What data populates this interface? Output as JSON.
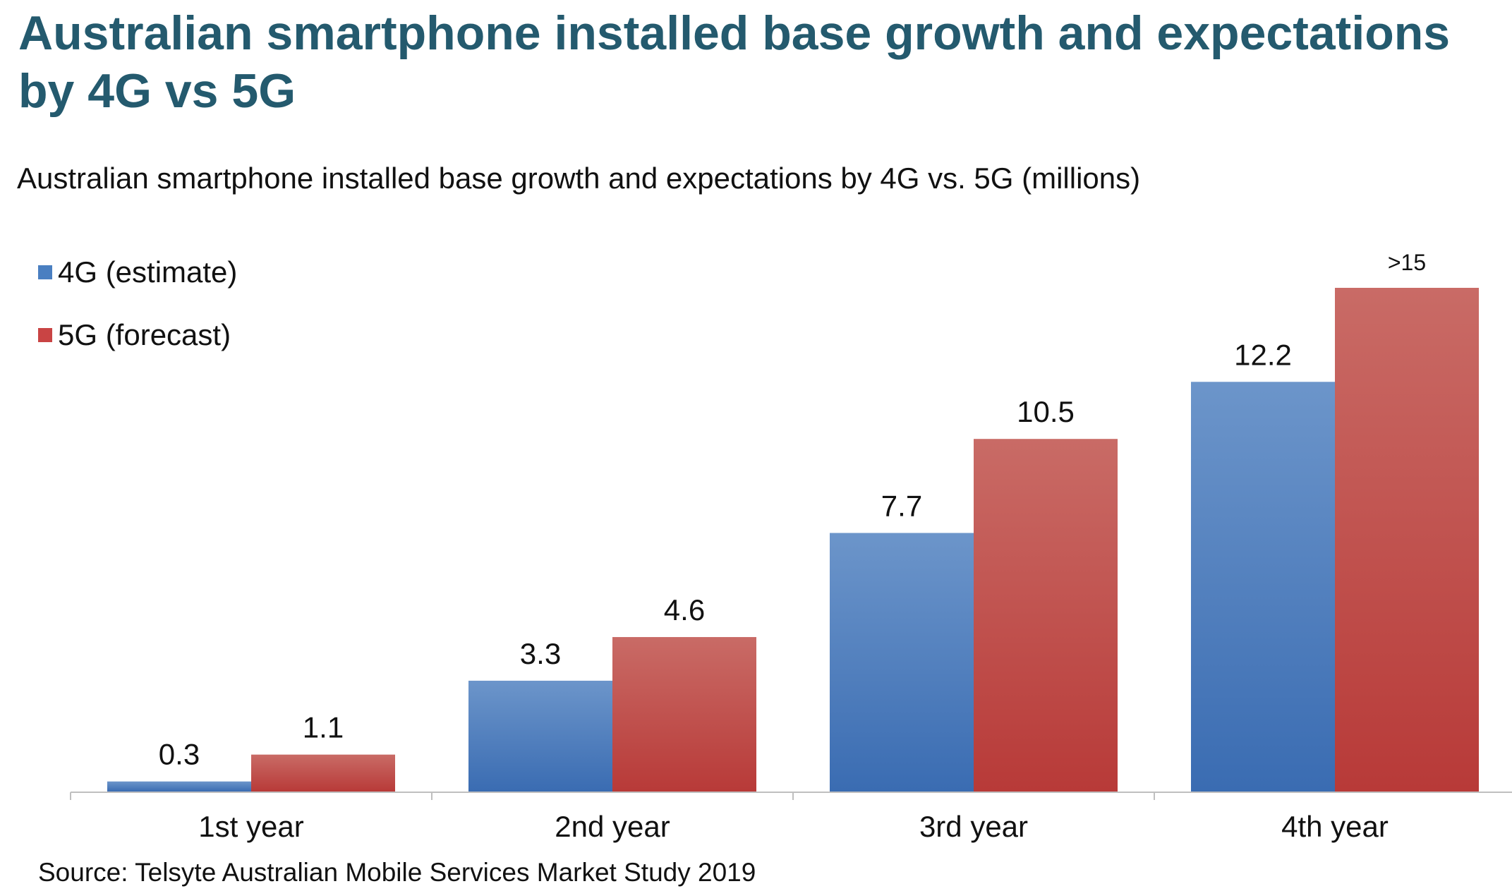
{
  "title": "Australian smartphone installed base growth and expectations by 4G vs 5G",
  "source": "Source: Telsyte Australian Mobile Services Market Study 2019",
  "chart_data": {
    "type": "bar",
    "title": "Australian smartphone installed base growth and expectations by 4G vs. 5G (millions)",
    "xlabel": "",
    "ylabel": "",
    "categories": [
      "1st year",
      "2nd year",
      "3rd year",
      "4th year"
    ],
    "series": [
      {
        "name": "4G (estimate)",
        "color": "#4a7fc1",
        "values": [
          0.3,
          3.3,
          7.7,
          12.2
        ],
        "labels": [
          "0.3",
          "3.3",
          "7.7",
          "12.2"
        ]
      },
      {
        "name": "5G (forecast)",
        "color": "#c94444",
        "values": [
          1.1,
          4.6,
          10.5,
          15
        ],
        "labels": [
          "1.1",
          "4.6",
          "10.5",
          ">15"
        ]
      }
    ],
    "ylim": [
      0,
      15
    ],
    "grid": false,
    "legend": "top-left"
  }
}
